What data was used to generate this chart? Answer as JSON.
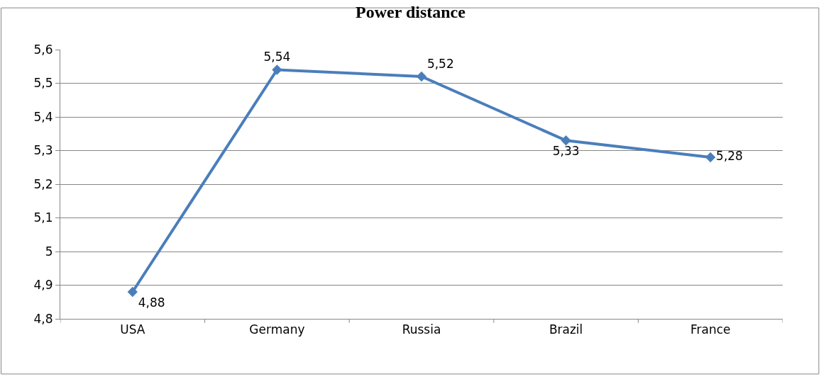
{
  "chart_data": {
    "type": "line",
    "title": "Power distance",
    "categories": [
      "USA",
      "Germany",
      "Russia",
      "Brazil",
      "France"
    ],
    "series": [
      {
        "color": "#4a7ebb",
        "values": [
          4.88,
          5.54,
          5.52,
          5.33,
          5.28
        ],
        "value_labels": [
          "4,88",
          "5,54",
          "5,52",
          "5,33",
          "5,28"
        ]
      }
    ],
    "ylim": [
      4.8,
      5.6
    ],
    "yticks": [
      {
        "value": 4.8,
        "label": "4,8"
      },
      {
        "value": 4.9,
        "label": "4,9"
      },
      5,
      {
        "value": 5.1,
        "label": "5,1"
      },
      {
        "value": 5.2,
        "label": "5,2"
      },
      {
        "value": 5.3,
        "label": "5,3"
      },
      {
        "value": 5.4,
        "label": "5,4"
      },
      {
        "value": 5.5,
        "label": "5,5"
      },
      {
        "value": 5.6,
        "label": "5,6"
      }
    ],
    "grid": "y",
    "legend": false,
    "marker": "diamond",
    "line_style": "solid"
  }
}
